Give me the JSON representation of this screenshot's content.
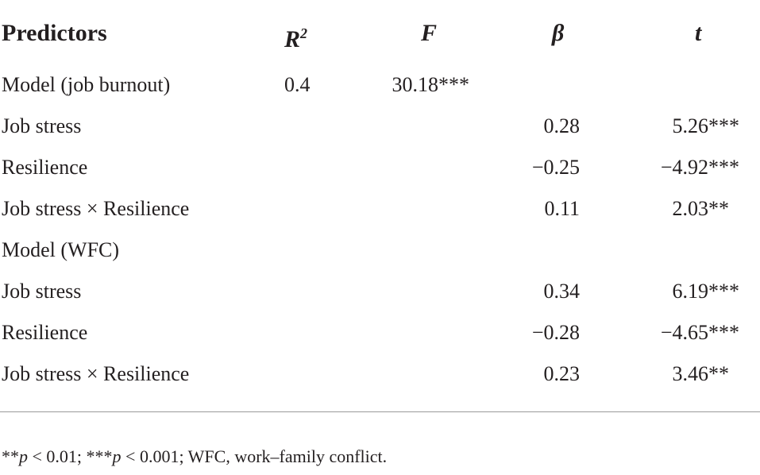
{
  "table": {
    "header": {
      "predictors": "Predictors",
      "r2": {
        "text": "R",
        "sup": "2"
      },
      "f": "F",
      "beta": "β",
      "t": "t"
    },
    "rows": [
      {
        "predictor": "Model (job burnout)",
        "r2": "0.4",
        "f": {
          "value": "30.18",
          "stars": "***"
        },
        "beta": null,
        "t": null
      },
      {
        "predictor": "Job stress",
        "r2": null,
        "f": null,
        "beta": "0.28",
        "t": {
          "value": "5.26",
          "stars": "***"
        }
      },
      {
        "predictor": "Resilience",
        "r2": null,
        "f": null,
        "beta": "−0.25",
        "t": {
          "value": "−4.92",
          "stars": "***"
        }
      },
      {
        "predictor": "Job stress × Resilience",
        "r2": null,
        "f": null,
        "beta": "0.11",
        "t": {
          "value": "2.03",
          "stars": "**"
        }
      },
      {
        "predictor": "Model (WFC)",
        "r2": null,
        "f": null,
        "beta": null,
        "t": null
      },
      {
        "predictor": "Job stress",
        "r2": null,
        "f": null,
        "beta": "0.34",
        "t": {
          "value": "6.19",
          "stars": "***"
        }
      },
      {
        "predictor": "Resilience",
        "r2": null,
        "f": null,
        "beta": "−0.28",
        "t": {
          "value": "−4.65",
          "stars": "***"
        }
      },
      {
        "predictor": "Job stress × Resilience",
        "r2": null,
        "f": null,
        "beta": "0.23",
        "t": {
          "value": "3.46",
          "stars": "**"
        }
      }
    ]
  },
  "footnote": [
    {
      "text": "**"
    },
    {
      "text": "p",
      "italic": true
    },
    {
      "text": " < 0.01; ***"
    },
    {
      "text": "p",
      "italic": true
    },
    {
      "text": " < 0.001; WFC, work–family conflict."
    }
  ]
}
